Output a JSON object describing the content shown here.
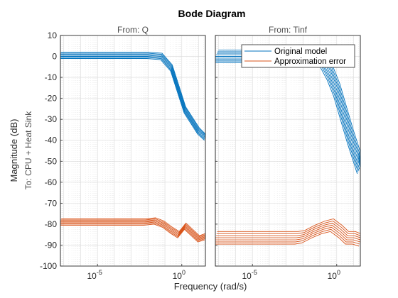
{
  "chart_data": {
    "type": "line",
    "title": "Bode Diagram",
    "xlabel": "Frequency  (rad/s)",
    "ylabel": "Magnitude (dB)",
    "row_label": "To: CPU + Heat Sink",
    "xscale": "log",
    "xlim_log10": [
      -7.2,
      1.4
    ],
    "ylim": [
      -100,
      10
    ],
    "y_ticks": [
      "10",
      "0",
      "-10",
      "-20",
      "-30",
      "-40",
      "-50",
      "-60",
      "-70",
      "-80",
      "-90",
      "-100"
    ],
    "grid": true,
    "colors": {
      "original": "#0072BD",
      "error": "#D95319"
    },
    "legend": {
      "placement": "top-right of right panel",
      "entries": [
        "Original model",
        "Approximation error"
      ]
    },
    "panels": [
      {
        "subtitle": "From: Q",
        "x_ticks": [
          {
            "base": "10",
            "exp": "-5",
            "log10": -5
          },
          {
            "base": "10",
            "exp": "0",
            "log10": 0
          }
        ],
        "series": [
          {
            "kind": "original",
            "count": 7,
            "log10_x": [
              -7.2,
              -4,
              -2,
              -1.2,
              -0.6,
              -0.2,
              0.2,
              0.6,
              1.0,
              1.4
            ],
            "y": [
              1,
              1,
              1,
              0.5,
              -5,
              -15,
              -25,
              -30,
              -35,
              -38
            ],
            "offsets": [
              -2,
              -1.5,
              -1,
              -0.5,
              0,
              0.5,
              1
            ]
          },
          {
            "kind": "error",
            "count": 7,
            "log10_x": [
              -7.2,
              -4,
              -2.2,
              -1.6,
              -1.1,
              -0.6,
              -0.2,
              0.2,
              0.6,
              1.0,
              1.4
            ],
            "y": [
              -79,
              -79,
              -79,
              -78.5,
              -80,
              -83,
              -85,
              -81,
              -84,
              -87,
              -86
            ],
            "offsets": [
              -1.5,
              -1,
              -0.5,
              0,
              0.5,
              1,
              1.5
            ]
          }
        ]
      },
      {
        "subtitle": "From: Tinf",
        "x_ticks": [
          {
            "base": "10",
            "exp": "-5",
            "log10": -5
          },
          {
            "base": "10",
            "exp": "0",
            "log10": 0
          }
        ],
        "series": [
          {
            "kind": "original",
            "count": 9,
            "log10_x": [
              -7.2,
              -2,
              -1.2,
              -0.8,
              -0.4,
              0,
              0.4,
              0.8,
              1.2,
              1.4
            ],
            "y": [
              0,
              0,
              0,
              -2,
              -8,
              -16,
              -27,
              -38,
              -48,
              -53
            ],
            "offsets": [
              -3,
              -2.2,
              -1.5,
              -0.8,
              0,
              0.8,
              1.5,
              2.2,
              3
            ]
          },
          {
            "kind": "error",
            "count": 7,
            "log10_x": [
              -7.2,
              -4,
              -2.4,
              -2,
              -1.4,
              -0.8,
              -0.3,
              0.2,
              0.6,
              1.0,
              1.4
            ],
            "y": [
              -87,
              -87,
              -87,
              -86.5,
              -84,
              -82,
              -81,
              -84,
              -87,
              -87,
              -88
            ],
            "offsets": [
              -2.5,
              -1.5,
              -0.5,
              0.5,
              1.5,
              2.5,
              3.5
            ]
          }
        ]
      }
    ]
  }
}
